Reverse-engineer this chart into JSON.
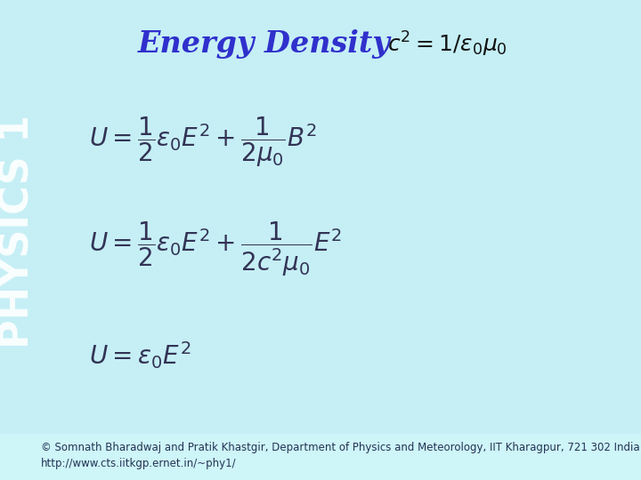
{
  "bg_color": "#c5eff5",
  "sidebar_text": "PHYSICS 1",
  "sidebar_text_color": "#ffffff",
  "title": "Energy Density",
  "title_color": "#3030cc",
  "title_fontsize": 24,
  "eq_color": "#333355",
  "eq_fontsize": 20,
  "formula_title_right": "$c^2 = 1/\\epsilon_0\\mu_0$",
  "formula1": "$U = \\dfrac{1}{2}\\epsilon_0 E^2 + \\dfrac{1}{2\\mu_0} B^2$",
  "formula2": "$U = \\dfrac{1}{2}\\epsilon_0 E^2 + \\dfrac{1}{2c^2\\mu_0} E^2$",
  "formula3": "$U = \\epsilon_0 E^2$",
  "footer_line1": "© Somnath Bharadwaj and Pratik Khastgir, Department of Physics and Meteorology, IIT Kharagpur, 721 302 India",
  "footer_line2": "http://www.cts.iitkgp.ernet.in/~phy1/",
  "footer_color": "#223355",
  "footer_fontsize": 8.5,
  "footer_bg": "#c8f0f4"
}
